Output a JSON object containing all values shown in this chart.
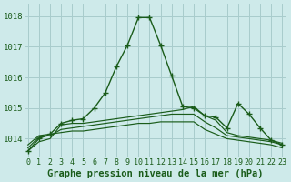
{
  "title": "Graphe pression niveau de la mer (hPa)",
  "bg_color": "#ceeaea",
  "grid_color": "#a8cccc",
  "line_color": "#1a5c1a",
  "x_labels": [
    "0",
    "1",
    "2",
    "3",
    "4",
    "5",
    "6",
    "7",
    "8",
    "9",
    "10",
    "11",
    "12",
    "13",
    "14",
    "15",
    "16",
    "17",
    "18",
    "19",
    "20",
    "21",
    "22",
    "23"
  ],
  "ylim": [
    1013.4,
    1018.4
  ],
  "yticks": [
    1014,
    1015,
    1016,
    1017,
    1018
  ],
  "lines": [
    [
      1013.6,
      1014.0,
      1014.15,
      1014.5,
      1014.6,
      1014.65,
      1015.0,
      1015.5,
      1016.35,
      1017.05,
      1017.95,
      1017.95,
      1017.05,
      1016.05,
      1015.05,
      1015.0,
      1014.75,
      1014.7,
      1014.35,
      1015.15,
      1014.8,
      1014.35,
      1013.95,
      1013.8
    ],
    [
      1013.6,
      1013.9,
      1014.0,
      1014.45,
      1014.5,
      1014.5,
      1014.55,
      1014.6,
      1014.65,
      1014.7,
      1014.75,
      1014.8,
      1014.85,
      1014.9,
      1014.95,
      1015.05,
      1014.75,
      1014.6,
      1014.2,
      1014.1,
      1014.05,
      1014.0,
      1013.95,
      1013.85
    ],
    [
      1013.7,
      1014.05,
      1014.1,
      1014.3,
      1014.35,
      1014.4,
      1014.45,
      1014.5,
      1014.55,
      1014.6,
      1014.65,
      1014.7,
      1014.75,
      1014.8,
      1014.8,
      1014.8,
      1014.55,
      1014.35,
      1014.1,
      1014.05,
      1014.0,
      1013.95,
      1013.9,
      1013.8
    ],
    [
      1013.8,
      1014.1,
      1014.15,
      1014.2,
      1014.25,
      1014.25,
      1014.3,
      1014.35,
      1014.4,
      1014.45,
      1014.5,
      1014.5,
      1014.55,
      1014.55,
      1014.55,
      1014.55,
      1014.3,
      1014.15,
      1014.0,
      1013.95,
      1013.9,
      1013.85,
      1013.8,
      1013.7
    ]
  ],
  "marker": "+",
  "marker_size": 4,
  "marker_linewidth": 1.0,
  "line_width": 1.0,
  "xlabel_fontsize": 6,
  "ylabel_fontsize": 6.5,
  "title_fontsize": 7.5,
  "title_bold": true
}
